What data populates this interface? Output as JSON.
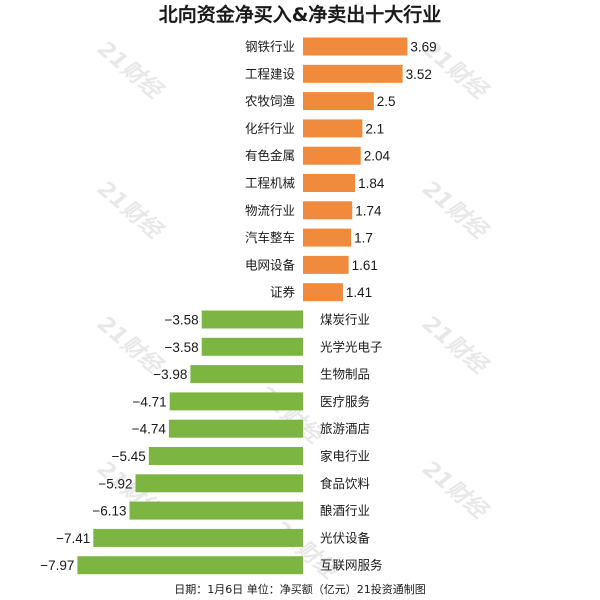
{
  "chart_data": {
    "type": "bar",
    "orientation": "horizontal",
    "title": "北向资金净买入&净卖出十大行业",
    "categories": [
      "钢铁行业",
      "工程建设",
      "农牧饲渔",
      "化纤行业",
      "有色金属",
      "工程机械",
      "物流行业",
      "汽车整车",
      "电网设备",
      "证券",
      "煤炭行业",
      "光学光电子",
      "生物制品",
      "医疗服务",
      "旅游酒店",
      "家电行业",
      "食品饮料",
      "酿酒行业",
      "光伏设备",
      "互联网服务"
    ],
    "values": [
      3.69,
      3.52,
      2.5,
      2.1,
      2.04,
      1.84,
      1.74,
      1.7,
      1.61,
      1.41,
      -3.58,
      -3.58,
      -3.98,
      -4.71,
      -4.74,
      -5.45,
      -5.92,
      -6.13,
      -7.41,
      -7.97
    ],
    "value_labels": [
      "3.69",
      "3.52",
      "2.5",
      "2.1",
      "2.04",
      "1.84",
      "1.74",
      "1.7",
      "1.61",
      "1.41",
      "−3.58",
      "−3.58",
      "−3.98",
      "−4.71",
      "−4.74",
      "−5.45",
      "−5.92",
      "−6.13",
      "−7.41",
      "−7.97"
    ],
    "colors": {
      "positive": "#F08A3C",
      "negative": "#7DB543"
    },
    "grid": false,
    "legend": "none"
  },
  "footer": "日期：1月6日  单位：净买额（亿元）21投资通制图",
  "watermark": "21财经"
}
